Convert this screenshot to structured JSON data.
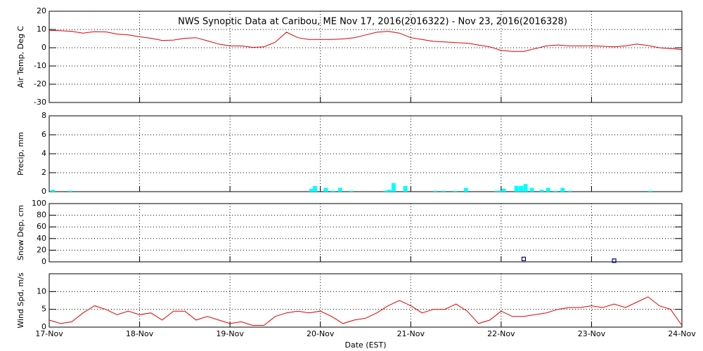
{
  "chart_data": [
    {
      "type": "line",
      "title": "NWS Synoptic Data at Caribou, ME   Nov 17, 2016(2016322) - Nov 23, 2016(2016328)",
      "ylabel": "Air Temp, Deg C",
      "color": "#e00000",
      "x": [
        0,
        0.125,
        0.25,
        0.375,
        0.5,
        0.625,
        0.75,
        0.875,
        1,
        1.125,
        1.25,
        1.375,
        1.5,
        1.625,
        1.75,
        1.875,
        2,
        2.125,
        2.25,
        2.375,
        2.5,
        2.625,
        2.75,
        2.875,
        3,
        3.125,
        3.25,
        3.375,
        3.5,
        3.625,
        3.75,
        3.875,
        4,
        4.125,
        4.25,
        4.375,
        4.5,
        4.625,
        4.75,
        4.875,
        5,
        5.125,
        5.25,
        5.375,
        5.5,
        5.625,
        5.75,
        5.875,
        6,
        6.125,
        6.25,
        6.375,
        6.5,
        6.625,
        6.75,
        6.875,
        7
      ],
      "values": [
        9.5,
        9.3,
        9,
        8,
        8.8,
        8.7,
        7.5,
        7,
        6,
        5.2,
        4,
        4.2,
        5.2,
        5.5,
        3.8,
        2,
        1,
        1,
        0.2,
        0.5,
        3,
        8.5,
        5.5,
        4.5,
        4.5,
        4.5,
        4.8,
        5.5,
        7,
        8.5,
        9,
        8,
        5.5,
        4.5,
        3.5,
        3.2,
        2.8,
        2.5,
        1.5,
        0.5,
        -1.5,
        -2,
        -2,
        -0.5,
        1,
        1.5,
        1,
        1,
        1,
        0.8,
        0.5,
        1,
        2,
        1.2,
        0,
        -0.5,
        -1
      ],
      "xlim": [
        0,
        7
      ],
      "xticks": [
        0,
        1,
        2,
        3,
        4,
        5,
        6,
        7
      ],
      "ylim": [
        -30,
        20
      ],
      "yticks": [
        -30,
        -20,
        -10,
        0,
        10,
        20
      ],
      "grid": true
    },
    {
      "type": "bar",
      "ylabel": "Precip, mm",
      "color": "#00ffff",
      "x": [
        0.04,
        0.23,
        2.9,
        2.94,
        3.06,
        3.14,
        3.22,
        3.34,
        3.72,
        3.76,
        3.81,
        3.94,
        4.27,
        4.36,
        4.49,
        4.61,
        4.95,
        4.99,
        5.03,
        5.17,
        5.22,
        5.27,
        5.34,
        5.45,
        5.52,
        5.6,
        5.68,
        5.76,
        6.65
      ],
      "values": [
        0.2,
        0.1,
        0.3,
        0.6,
        0.4,
        0.1,
        0.4,
        0.1,
        0.1,
        0.2,
        0.9,
        0.6,
        0.1,
        0.1,
        0.1,
        0.4,
        0.1,
        0.1,
        0.3,
        0.6,
        0.6,
        0.8,
        0.4,
        0.2,
        0.4,
        0.1,
        0.4,
        0.1,
        0.1
      ],
      "xlim": [
        0,
        7
      ],
      "xticks": [
        0,
        1,
        2,
        3,
        4,
        5,
        6,
        7
      ],
      "ylim": [
        0,
        8
      ],
      "yticks": [
        0,
        2,
        4,
        6,
        8
      ],
      "grid": true
    },
    {
      "type": "scatter",
      "ylabel": "Snow Dep, cm",
      "color": "#000080",
      "x": [
        5.25,
        6.25
      ],
      "values": [
        5,
        2
      ],
      "xlim": [
        0,
        7
      ],
      "xticks": [
        0,
        1,
        2,
        3,
        4,
        5,
        6,
        7
      ],
      "ylim": [
        0,
        100
      ],
      "yticks": [
        0,
        20,
        40,
        60,
        80,
        100
      ],
      "grid": true
    },
    {
      "type": "line",
      "ylabel": "Wind Spd, m/s",
      "xlabel": "Date (EST)",
      "color": "#e00000",
      "x": [
        0,
        0.125,
        0.25,
        0.375,
        0.5,
        0.625,
        0.75,
        0.875,
        1,
        1.125,
        1.25,
        1.375,
        1.5,
        1.625,
        1.75,
        1.875,
        2,
        2.125,
        2.25,
        2.375,
        2.5,
        2.625,
        2.75,
        2.875,
        3,
        3.125,
        3.25,
        3.375,
        3.5,
        3.625,
        3.75,
        3.875,
        4,
        4.125,
        4.25,
        4.375,
        4.5,
        4.625,
        4.75,
        4.875,
        5,
        5.125,
        5.25,
        5.375,
        5.5,
        5.625,
        5.75,
        5.875,
        6,
        6.125,
        6.25,
        6.375,
        6.5,
        6.625,
        6.75,
        6.875,
        7
      ],
      "values": [
        2,
        1,
        1.5,
        4,
        6,
        5,
        3.5,
        4.5,
        3.5,
        4,
        2,
        4.5,
        4.5,
        2,
        3,
        2,
        1,
        1.5,
        0.5,
        0.5,
        3,
        4,
        4.5,
        4,
        4.5,
        3,
        1,
        2,
        2.5,
        4,
        6,
        7.5,
        6,
        4,
        5,
        5,
        6.5,
        4.5,
        1,
        2,
        4.5,
        3,
        3,
        3.5,
        4,
        5,
        5.5,
        5.5,
        6,
        5.5,
        6.5,
        5.5,
        7,
        8.5,
        6,
        5,
        0.5
      ],
      "xlim": [
        0,
        7
      ],
      "xticks": [
        {
          "value": 0,
          "label": "17-Nov"
        },
        {
          "value": 1,
          "label": "18-Nov"
        },
        {
          "value": 2,
          "label": "19-Nov"
        },
        {
          "value": 3,
          "label": "20-Nov"
        },
        {
          "value": 4,
          "label": "21-Nov"
        },
        {
          "value": 5,
          "label": "22-Nov"
        },
        {
          "value": 6,
          "label": "23-Nov"
        },
        {
          "value": 7,
          "label": "24-Nov"
        }
      ],
      "ylim": [
        0,
        15
      ],
      "yticks": [
        0,
        5,
        10
      ],
      "grid": true
    }
  ]
}
